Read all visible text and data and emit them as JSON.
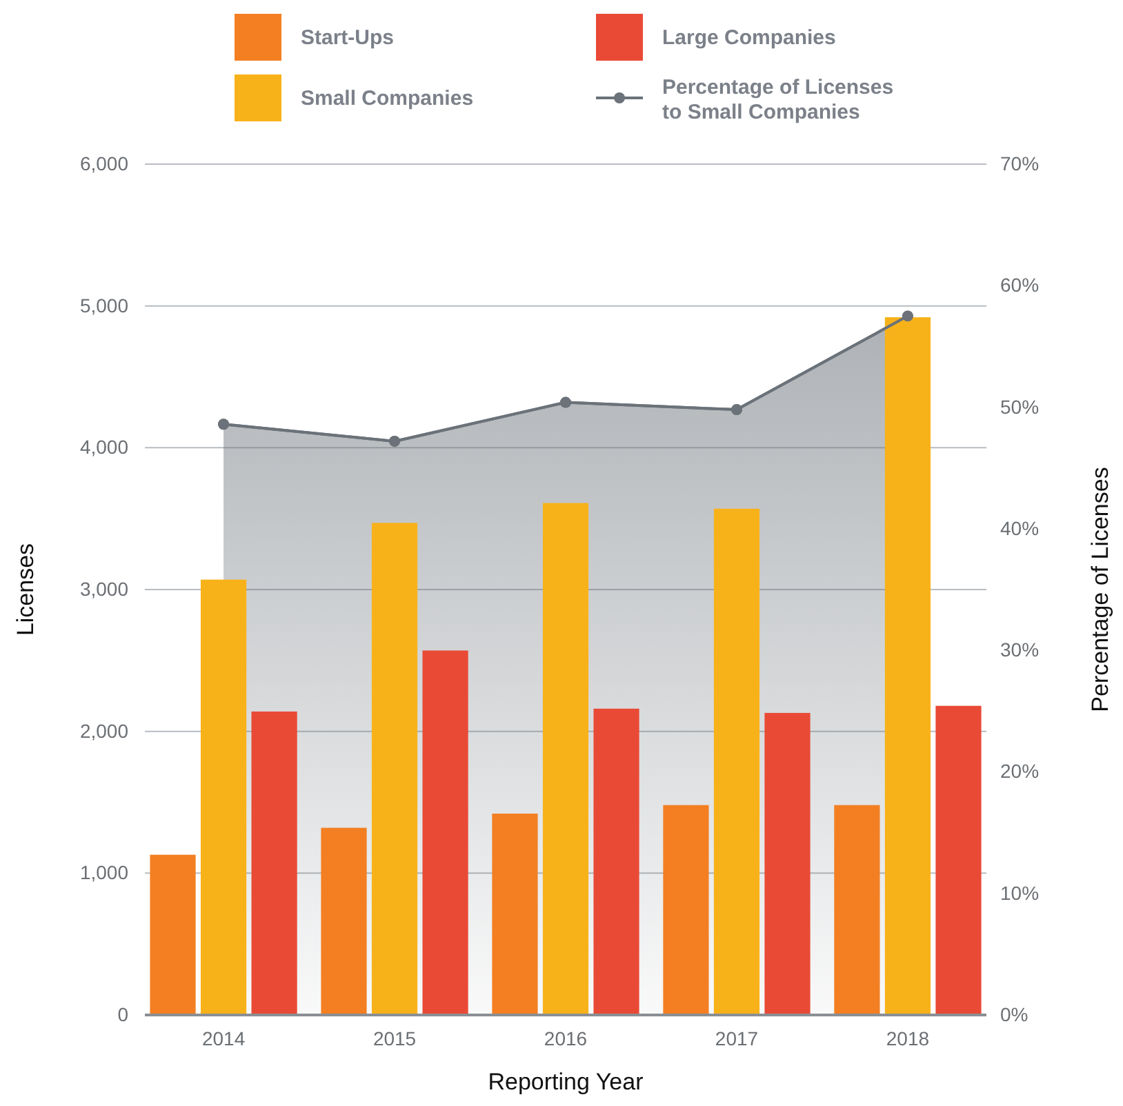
{
  "chart_data": {
    "type": "bar",
    "xlabel": "Reporting Year",
    "ylabel": "Licenses",
    "y2label": "Percentage of Licenses",
    "categories": [
      "2014",
      "2015",
      "2016",
      "2017",
      "2018"
    ],
    "series": [
      {
        "name": "Start-Ups",
        "color": "#f37f22",
        "values": [
          1130,
          1320,
          1420,
          1480,
          1480
        ]
      },
      {
        "name": "Small Companies",
        "color": "#f8b219",
        "values": [
          3070,
          3470,
          3610,
          3570,
          4920
        ]
      },
      {
        "name": "Large Companies",
        "color": "#e94a35",
        "values": [
          2140,
          2570,
          2160,
          2130,
          2180
        ]
      },
      {
        "name": "Percentage of Licenses to Small Companies",
        "type": "area",
        "axis": "y2",
        "color": "#6b7279",
        "marker": "circle",
        "values": [
          48.6,
          47.2,
          50.4,
          49.8,
          57.5
        ]
      }
    ],
    "ylim": [
      0,
      6000
    ],
    "yticks": [
      0,
      {
        "value": 1000,
        "label": "1,000"
      },
      {
        "value": 2000,
        "label": "2,000"
      },
      {
        "value": 3000,
        "label": "3,000"
      },
      {
        "value": 4000,
        "label": "4,000"
      },
      {
        "value": 5000,
        "label": "5,000"
      },
      {
        "value": 6000,
        "label": "6,000"
      }
    ],
    "y2lim": [
      0,
      70
    ],
    "y2ticks": [
      {
        "value": 0,
        "label": "0%"
      },
      {
        "value": 10,
        "label": "10%"
      },
      {
        "value": 20,
        "label": "20%"
      },
      {
        "value": 30,
        "label": "30%"
      },
      {
        "value": 40,
        "label": "40%"
      },
      {
        "value": 50,
        "label": "50%"
      },
      {
        "value": 60,
        "label": "60%"
      },
      {
        "value": 70,
        "label": "70%"
      }
    ],
    "grid": "y",
    "legend": "top"
  }
}
